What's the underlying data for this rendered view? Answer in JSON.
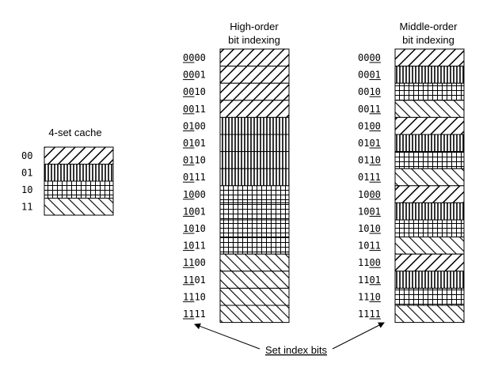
{
  "cache": {
    "title": "4-set cache",
    "sets": [
      {
        "label": "00",
        "pattern": "diag-right"
      },
      {
        "label": "01",
        "pattern": "vertical"
      },
      {
        "label": "10",
        "pattern": "grid"
      },
      {
        "label": "11",
        "pattern": "diag-left"
      }
    ]
  },
  "high_order": {
    "title_line1": "High-order",
    "title_line2": "bit indexing",
    "underline_start": 0,
    "rows": [
      {
        "address": "0000",
        "pattern": "diag-right"
      },
      {
        "address": "0001",
        "pattern": "diag-right"
      },
      {
        "address": "0010",
        "pattern": "diag-right"
      },
      {
        "address": "0011",
        "pattern": "diag-right"
      },
      {
        "address": "0100",
        "pattern": "vertical"
      },
      {
        "address": "0101",
        "pattern": "vertical"
      },
      {
        "address": "0110",
        "pattern": "vertical"
      },
      {
        "address": "0111",
        "pattern": "vertical"
      },
      {
        "address": "1000",
        "pattern": "grid"
      },
      {
        "address": "1001",
        "pattern": "grid"
      },
      {
        "address": "1010",
        "pattern": "grid"
      },
      {
        "address": "1011",
        "pattern": "grid"
      },
      {
        "address": "1100",
        "pattern": "diag-left"
      },
      {
        "address": "1101",
        "pattern": "diag-left"
      },
      {
        "address": "1110",
        "pattern": "diag-left"
      },
      {
        "address": "1111",
        "pattern": "diag-left"
      }
    ]
  },
  "middle_order": {
    "title_line1": "Middle-order",
    "title_line2": "bit indexing",
    "underline_start": 2,
    "rows": [
      {
        "address": "0000",
        "pattern": "diag-right"
      },
      {
        "address": "0001",
        "pattern": "vertical"
      },
      {
        "address": "0010",
        "pattern": "grid"
      },
      {
        "address": "0011",
        "pattern": "diag-left"
      },
      {
        "address": "0100",
        "pattern": "diag-right"
      },
      {
        "address": "0101",
        "pattern": "vertical"
      },
      {
        "address": "0110",
        "pattern": "grid"
      },
      {
        "address": "0111",
        "pattern": "diag-left"
      },
      {
        "address": "1000",
        "pattern": "diag-right"
      },
      {
        "address": "1001",
        "pattern": "vertical"
      },
      {
        "address": "1010",
        "pattern": "grid"
      },
      {
        "address": "1011",
        "pattern": "diag-left"
      },
      {
        "address": "1100",
        "pattern": "diag-right"
      },
      {
        "address": "1101",
        "pattern": "vertical"
      },
      {
        "address": "1110",
        "pattern": "grid"
      },
      {
        "address": "1111",
        "pattern": "diag-left"
      }
    ]
  },
  "caption": "Set index bits"
}
